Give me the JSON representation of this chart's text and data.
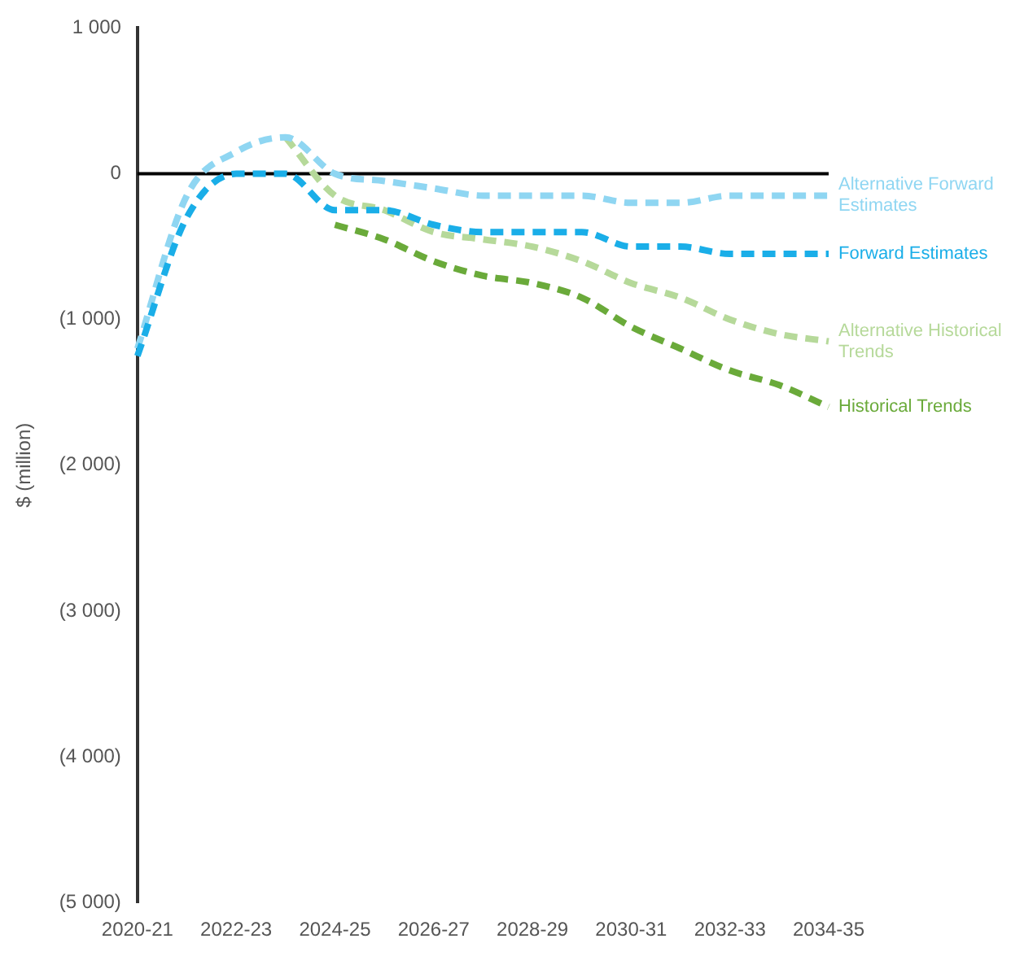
{
  "chart_data": {
    "type": "line",
    "ylabel": "$ (million)",
    "categories": [
      "2020-21",
      null,
      "2022-23",
      null,
      "2024-25",
      null,
      "2026-27",
      null,
      "2028-29",
      null,
      "2030-31",
      null,
      "2032-33",
      null,
      "2034-35"
    ],
    "series": [
      {
        "name": "Alternative Historical Trends",
        "color": "#b6d99a",
        "values": [
          null,
          null,
          null,
          250,
          -150,
          -250,
          -400,
          -450,
          -500,
          -600,
          -750,
          -850,
          -1000,
          -1100,
          -1150
        ]
      },
      {
        "name": "Historical Trends",
        "color": "#6aaa3a",
        "values": [
          null,
          null,
          null,
          null,
          -350,
          -450,
          -600,
          -700,
          -750,
          -850,
          -1050,
          -1200,
          -1350,
          -1450,
          -1600
        ]
      },
      {
        "name": "Alternative Forward Estimates",
        "color": "#8fd6f2",
        "values": [
          -1200,
          -150,
          150,
          250,
          0,
          -50,
          -100,
          -150,
          -150,
          -150,
          -200,
          -200,
          -150,
          -150,
          -150
        ]
      },
      {
        "name": "Forward Estimates",
        "color": "#1aaee8",
        "values": [
          -1250,
          -300,
          0,
          0,
          -250,
          -250,
          -350,
          -400,
          -400,
          -400,
          -500,
          -500,
          -550,
          -550,
          -550
        ]
      }
    ],
    "ylim": [
      -5000,
      1000
    ],
    "yticks": [
      {
        "value": 1000,
        "label": "1 000"
      },
      {
        "value": 0,
        "label": "0"
      },
      {
        "value": -1000,
        "label": "(1 000)"
      },
      {
        "value": -2000,
        "label": "(2 000)"
      },
      {
        "value": -3000,
        "label": "(3 000)"
      },
      {
        "value": -4000,
        "label": "(4 000)"
      },
      {
        "value": -5000,
        "label": "(5 000)"
      }
    ],
    "ref_lines": [
      {
        "axis": "y",
        "value": 0,
        "color": "#000000"
      }
    ],
    "legend": false,
    "grid": false,
    "marker": "none",
    "line_style": "dashed"
  }
}
